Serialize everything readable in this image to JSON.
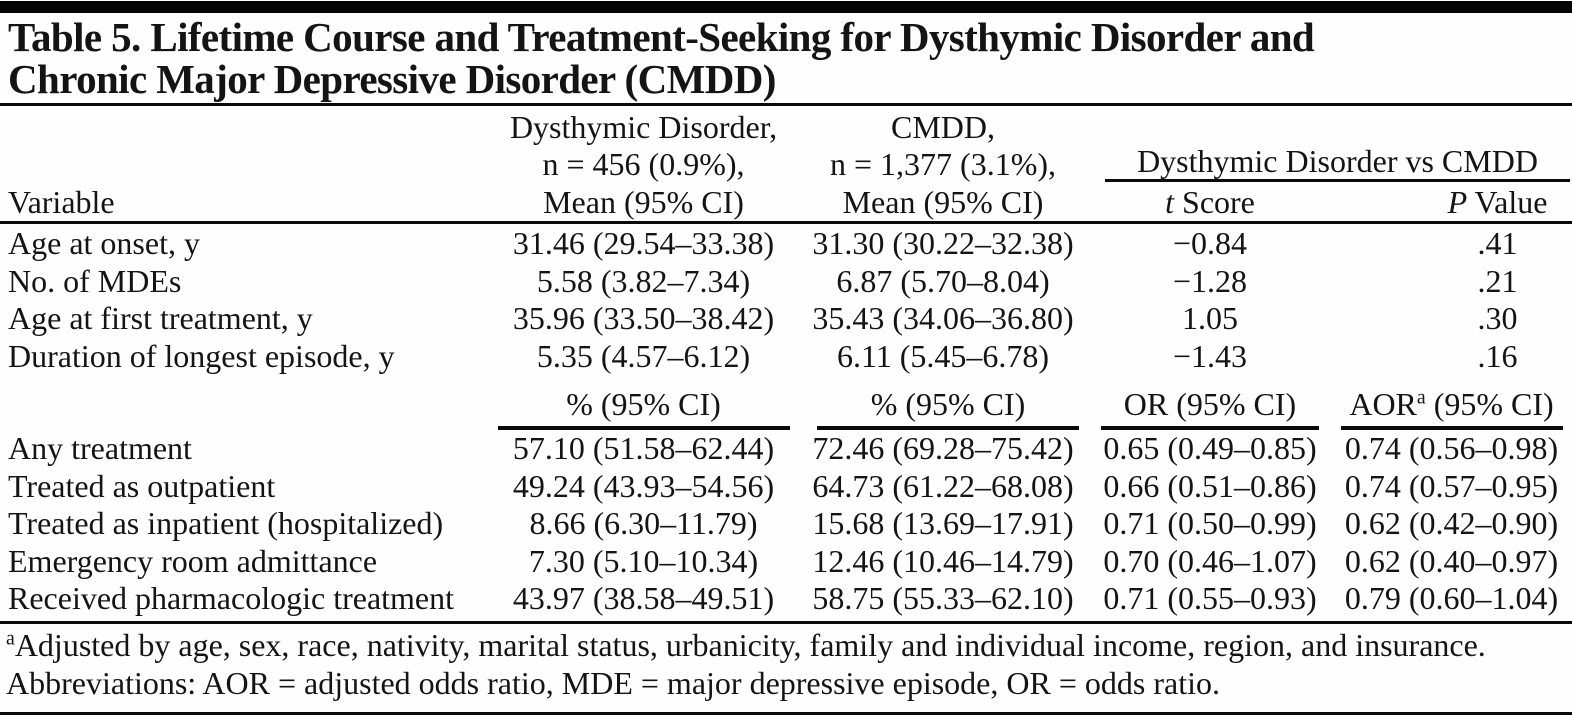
{
  "title": {
    "line1": "Table 5. Lifetime Course and Treatment-Seeking for Dysthymic Disorder and",
    "line2": "Chronic Major Depressive Disorder (CMDD)"
  },
  "header": {
    "variable_label": "Variable",
    "dysthymic_col": {
      "line1": "Dysthymic Disorder,",
      "line2": "n = 456 (0.9%),",
      "line3": "Mean (95% CI)"
    },
    "cmdd_col": {
      "line1": "CMDD,",
      "line2": "n = 1,377 (3.1%),",
      "line3": "Mean (95% CI)"
    },
    "spanner": "Dysthymic Disorder vs CMDD",
    "t_italic": "t",
    "t_rest": " Score",
    "p_italic": "P",
    "p_rest": " Value"
  },
  "mean_rows": [
    {
      "variable": "Age at onset, y",
      "dysthymic": "31.46 (29.54–33.38)",
      "cmdd": "31.30 (30.22–32.38)",
      "t": "−0.84",
      "p": ".41"
    },
    {
      "variable": "No. of MDEs",
      "dysthymic": "5.58 (3.82–7.34)",
      "cmdd": "6.87 (5.70–8.04)",
      "t": "−1.28",
      "p": ".21"
    },
    {
      "variable": "Age at first treatment, y",
      "dysthymic": "35.96 (33.50–38.42)",
      "cmdd": "35.43 (34.06–36.80)",
      "t": "1.05",
      "p": ".30"
    },
    {
      "variable": "Duration of longest episode, y",
      "dysthymic": "5.35 (4.57–6.12)",
      "cmdd": "6.11 (5.45–6.78)",
      "t": "−1.43",
      "p": ".16"
    }
  ],
  "subheader": {
    "pct_dysthymic": "% (95% CI)",
    "pct_cmdd": "% (95% CI)",
    "or": "OR (95% CI)",
    "aor_main": "AOR",
    "aor_sup": "a",
    "aor_rest": " (95% CI)"
  },
  "pct_rows": [
    {
      "variable": "Any treatment",
      "dysthymic": "57.10 (51.58–62.44)",
      "cmdd": "72.46 (69.28–75.42)",
      "or": "0.65 (0.49–0.85)",
      "aor": "0.74 (0.56–0.98)"
    },
    {
      "variable": "Treated as outpatient",
      "dysthymic": "49.24 (43.93–54.56)",
      "cmdd": "64.73 (61.22–68.08)",
      "or": "0.66 (0.51–0.86)",
      "aor": "0.74 (0.57–0.95)"
    },
    {
      "variable": "Treated as inpatient (hospitalized)",
      "dysthymic": "8.66 (6.30–11.79)",
      "cmdd": "15.68 (13.69–17.91)",
      "or": "0.71 (0.50–0.99)",
      "aor": "0.62 (0.42–0.90)"
    },
    {
      "variable": "Emergency room admittance",
      "dysthymic": "7.30 (5.10–10.34)",
      "cmdd": "12.46 (10.46–14.79)",
      "or": "0.70 (0.46–1.07)",
      "aor": "0.62 (0.40–0.97)"
    },
    {
      "variable": "Received pharmacologic treatment",
      "dysthymic": "43.97 (38.58–49.51)",
      "cmdd": "58.75 (55.33–62.10)",
      "or": "0.71 (0.55–0.93)",
      "aor": "0.79 (0.60–1.04)"
    }
  ],
  "footnotes": {
    "sup_a": "a",
    "line1": "Adjusted by age, sex, race, nativity, marital status, urbanicity, family and individual income, region, and insurance.",
    "line2": "Abbreviations: AOR = adjusted odds ratio, MDE = major depressive episode, OR = odds ratio."
  },
  "colors": {
    "text": "#141414",
    "rule": "#0a0a0a",
    "background": "#fefefe"
  }
}
